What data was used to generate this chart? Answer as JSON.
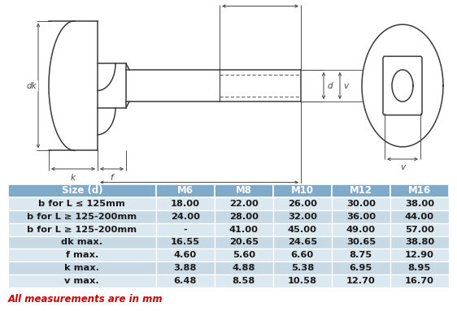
{
  "table_header": [
    "Size (d)",
    "M6",
    "M8",
    "M10",
    "M12",
    "M16"
  ],
  "table_rows": [
    [
      "b for L ≤ 125mm",
      "18.00",
      "22.00",
      "26.00",
      "30.00",
      "38.00"
    ],
    [
      "b for L ≥ 125-200mm",
      "24.00",
      "28.00",
      "32.00",
      "36.00",
      "44.00"
    ],
    [
      "b for L ≥ 125-200mm",
      "-",
      "41.00",
      "45.00",
      "49.00",
      "57.00"
    ],
    [
      "dk max.",
      "16.55",
      "20.65",
      "24.65",
      "30.65",
      "38.80"
    ],
    [
      "f max.",
      "4.60",
      "5.60",
      "6.60",
      "8.75",
      "12.90"
    ],
    [
      "k max.",
      "3.88",
      "4.88",
      "5.38",
      "6.95",
      "8.95"
    ],
    [
      "v max.",
      "6.48",
      "8.58",
      "10.58",
      "12.70",
      "16.70"
    ]
  ],
  "header_bg": "#7faac9",
  "row_bg_odd": "#dce8f0",
  "row_bg_even": "#c8d9e6",
  "footer_text": "All measurements are in mm",
  "footer_color": "#cc0000",
  "line_color": "#3a3a3a",
  "dim_color": "#444444"
}
